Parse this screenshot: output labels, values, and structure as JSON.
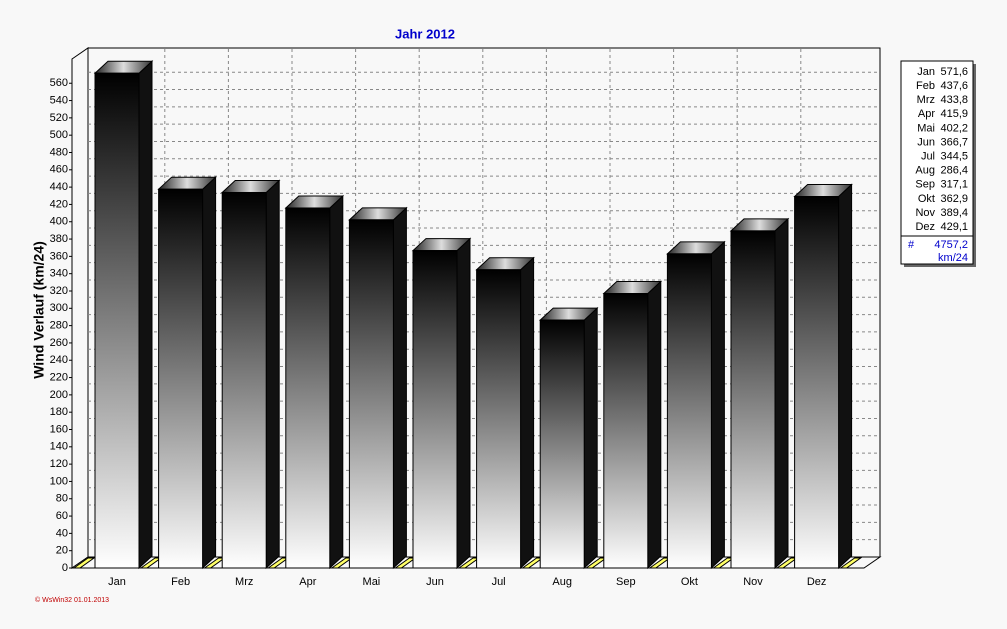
{
  "chart_data": {
    "type": "bar3d",
    "title": "Jahr  2012",
    "y_label": "Wind Verlauf  (km/24)",
    "categories": [
      "Jan",
      "Feb",
      "Mrz",
      "Apr",
      "Mai",
      "Jun",
      "Jul",
      "Aug",
      "Sep",
      "Okt",
      "Nov",
      "Dez"
    ],
    "values": [
      571.6,
      437.6,
      433.8,
      415.9,
      402.2,
      366.7,
      344.5,
      286.4,
      317.1,
      362.9,
      389.4,
      429.1
    ],
    "value_labels": [
      "571,6",
      "437,6",
      "433,8",
      "415,9",
      "402,2",
      "366,7",
      "344,5",
      "286,4",
      "317,1",
      "362,9",
      "389,4",
      "429,1"
    ],
    "ylim": [
      0,
      588
    ],
    "yticks": [
      0,
      20,
      40,
      60,
      80,
      100,
      120,
      140,
      160,
      180,
      200,
      220,
      240,
      260,
      280,
      300,
      320,
      340,
      360,
      380,
      400,
      420,
      440,
      460,
      480,
      500,
      520,
      540,
      560
    ],
    "grid": true,
    "legend": {
      "position": "right",
      "total_symbol": "#",
      "total": "4757,2",
      "unit": "km/24"
    },
    "footer": "© WsWin32  01.01.2013"
  }
}
